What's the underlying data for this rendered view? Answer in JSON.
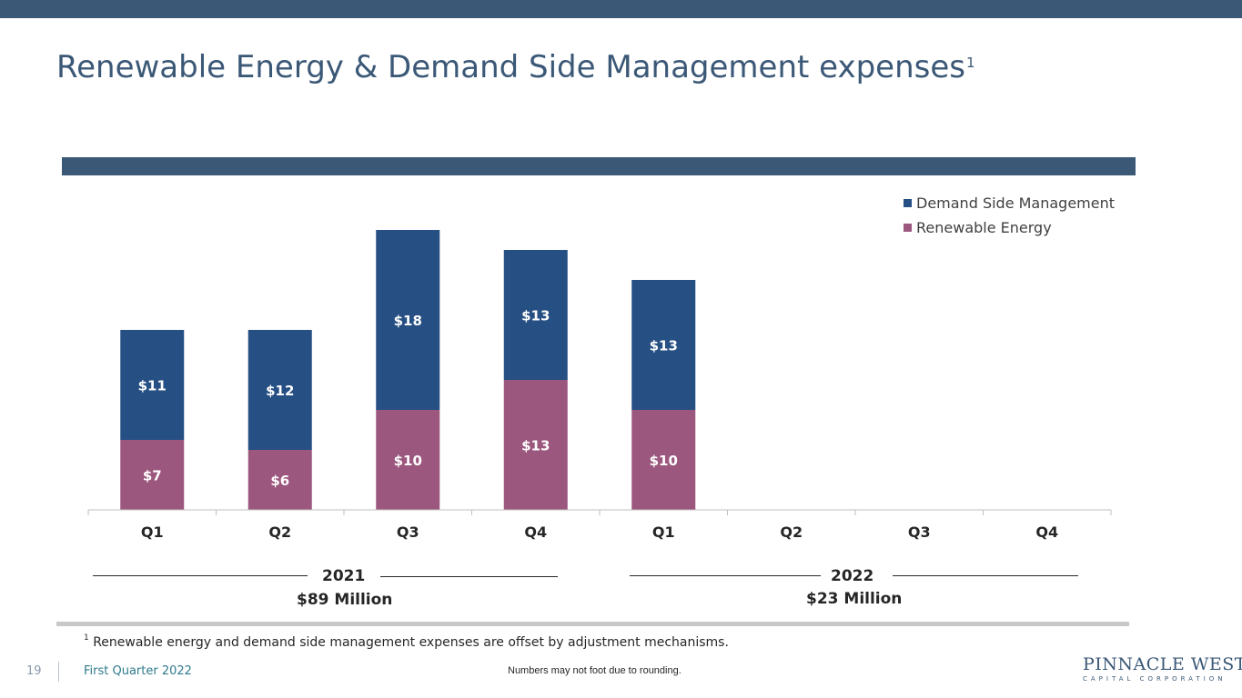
{
  "header": {
    "title": "Renewable Energy & Demand Side Management expenses",
    "title_footnote_mark": "1"
  },
  "colors": {
    "brand": "#3b5877",
    "demand_side_management": "#264f83",
    "renewable_energy": "#9c577e"
  },
  "chart_data": {
    "type": "bar",
    "stacked": true,
    "categories": [
      "Q1",
      "Q2",
      "Q3",
      "Q4",
      "Q1",
      "Q2",
      "Q3",
      "Q4"
    ],
    "series": [
      {
        "name": "Renewable Energy",
        "color": "#9c577e",
        "values": [
          7,
          6,
          10,
          13,
          10,
          null,
          null,
          null
        ],
        "labels": [
          "$7",
          "$6",
          "$10",
          "$13",
          "$10",
          "",
          "",
          ""
        ]
      },
      {
        "name": "Demand Side Management",
        "color": "#264f83",
        "values": [
          11,
          12,
          18,
          13,
          13,
          null,
          null,
          null
        ],
        "labels": [
          "$11",
          "$12",
          "$18",
          "$13",
          "$13",
          "",
          "",
          ""
        ]
      }
    ],
    "legend_order": [
      "Demand Side Management",
      "Renewable Energy"
    ],
    "legend_position": "top-right",
    "ylim": [
      0,
      28
    ],
    "grid": false,
    "groups": [
      {
        "year": "2021",
        "total": "$89 Million"
      },
      {
        "year": "2022",
        "total": "$23 Million"
      }
    ]
  },
  "footnote": {
    "mark": "1",
    "text": "Renewable energy and demand side management expenses are offset by adjustment mechanisms."
  },
  "footer": {
    "page_number": "19",
    "quarter": "First Quarter 2022",
    "note": "Numbers may not foot due to rounding.",
    "logo_main": "PINNACLE WEST",
    "logo_sub": "CAPITAL CORPORATION"
  }
}
